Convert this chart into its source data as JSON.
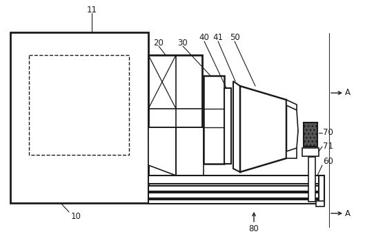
{
  "bg_color": "#ffffff",
  "line_color": "#1a1a1a",
  "figsize": [
    5.29,
    3.4
  ],
  "dpi": 100,
  "xlim": [
    0,
    529
  ],
  "ylim": [
    0,
    340
  ]
}
